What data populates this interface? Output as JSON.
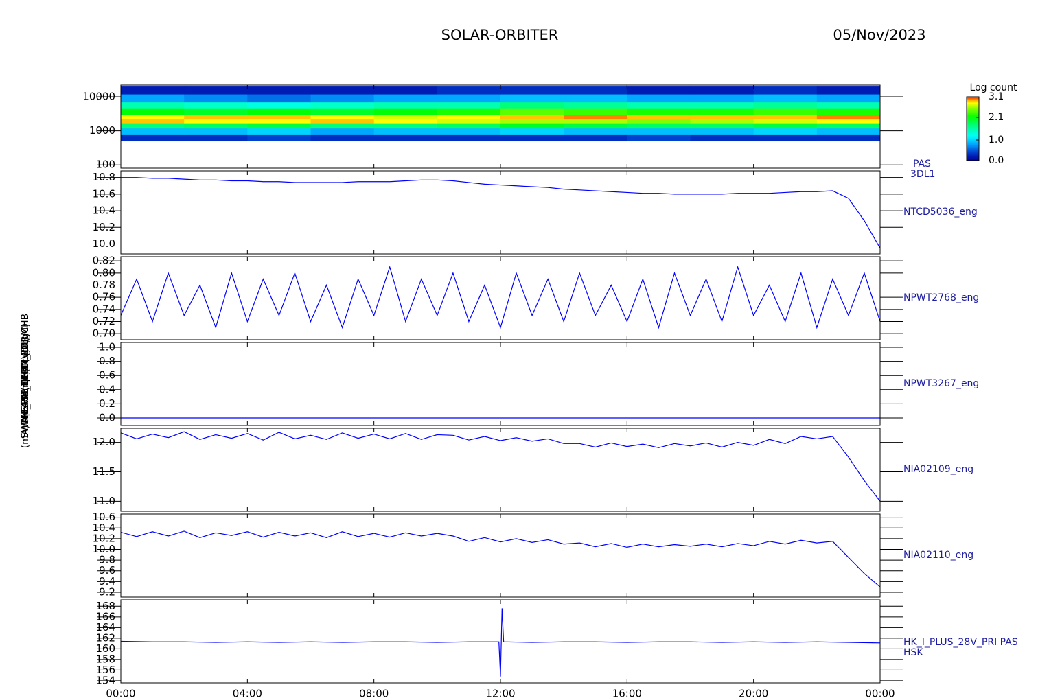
{
  "header": {
    "title": "SOLAR-ORBITER",
    "date": "05/Nov/2023"
  },
  "chart_data": [
    {
      "type": "heatmap",
      "ylabel": "(eV)",
      "label": "PAS",
      "label_line2": "3DL1",
      "xlim": [
        0,
        24
      ],
      "log_y": true,
      "ylim": [
        80,
        22000
      ],
      "yticks": [
        100,
        1000,
        10000
      ],
      "x_edges": [
        0,
        2,
        4,
        6,
        8,
        10,
        12,
        14,
        16,
        18,
        20,
        22,
        24
      ],
      "y_edges": [
        500,
        800,
        1200,
        1700,
        2200,
        3000,
        4500,
        7000,
        12000,
        20000
      ],
      "z": [
        [
          0.3,
          0.3,
          0.4,
          0.3,
          0.3,
          0.3,
          0.3,
          0.3,
          0.4,
          0.3,
          0.3,
          0.3
        ],
        [
          0.9,
          0.9,
          1.0,
          0.8,
          0.9,
          0.9,
          1.0,
          0.9,
          0.9,
          0.9,
          1.0,
          0.9
        ],
        [
          1.7,
          1.8,
          1.9,
          1.7,
          1.7,
          1.8,
          2.0,
          1.9,
          1.8,
          1.8,
          1.9,
          1.8
        ],
        [
          2.9,
          2.8,
          2.8,
          2.9,
          2.8,
          2.7,
          2.6,
          2.6,
          2.5,
          2.6,
          2.7,
          2.8
        ],
        [
          2.8,
          2.9,
          2.9,
          2.8,
          2.7,
          2.8,
          2.9,
          3.0,
          2.9,
          2.9,
          2.9,
          3.0
        ],
        [
          2.1,
          2.0,
          2.1,
          2.0,
          2.1,
          2.2,
          2.4,
          2.3,
          2.2,
          2.2,
          2.3,
          2.2
        ],
        [
          1.5,
          1.4,
          1.3,
          1.4,
          1.5,
          1.5,
          1.7,
          1.6,
          1.5,
          1.5,
          1.6,
          1.5
        ],
        [
          0.8,
          0.7,
          0.6,
          0.7,
          0.8,
          0.8,
          0.9,
          0.9,
          0.8,
          0.8,
          0.9,
          0.8
        ],
        [
          0.2,
          0.2,
          0.2,
          0.2,
          0.2,
          0.3,
          0.3,
          0.3,
          0.2,
          0.2,
          0.3,
          0.2
        ]
      ],
      "colorbar": {
        "title": "Log count",
        "zlim": [
          0,
          3.1
        ],
        "ticks": [
          {
            "value": 0,
            "label": "0.0"
          },
          {
            "value": 1,
            "label": "1.0"
          },
          2.1,
          3.1
        ]
      }
    },
    {
      "type": "line",
      "ylabel": "Apx Temp (DegC)",
      "xlim": [
        0,
        24
      ],
      "ylim": [
        9.88,
        10.88
      ],
      "yticks": [
        {
          "value": 10,
          "label": "10.0"
        },
        10.2,
        10.4,
        10.6,
        10.8
      ],
      "x": [
        0,
        0.5,
        1,
        1.5,
        2,
        2.5,
        3,
        3.5,
        4,
        4.5,
        5,
        5.5,
        6,
        6.5,
        7,
        7.5,
        8,
        8.5,
        9,
        9.5,
        10,
        10.5,
        11,
        11.5,
        12,
        12.5,
        13,
        13.5,
        14,
        14.5,
        15,
        15.5,
        16,
        16.5,
        17,
        17.5,
        18,
        18.5,
        19,
        19.5,
        20,
        20.5,
        21,
        21.5,
        22,
        22.5,
        23,
        23.5,
        24
      ],
      "series": [
        {
          "name": "NTCD5036_eng",
          "color": "#0000ff",
          "values": [
            10.8,
            10.8,
            10.79,
            10.79,
            10.78,
            10.77,
            10.77,
            10.76,
            10.76,
            10.75,
            10.75,
            10.74,
            10.74,
            10.74,
            10.74,
            10.75,
            10.75,
            10.75,
            10.76,
            10.77,
            10.77,
            10.76,
            10.74,
            10.72,
            10.71,
            10.7,
            10.69,
            10.68,
            10.66,
            10.65,
            10.64,
            10.63,
            10.62,
            10.61,
            10.61,
            10.6,
            10.6,
            10.6,
            10.6,
            10.61,
            10.61,
            10.61,
            10.62,
            10.63,
            10.63,
            10.64,
            10.55,
            10.28,
            9.95
          ]
        }
      ]
    },
    {
      "type": "line",
      "ylabel": "SWA-EAS1 TEMP (DegC)",
      "xlim": [
        0,
        24
      ],
      "ylim": [
        0.69,
        0.827
      ],
      "yticks": [
        {
          "value": 0.7,
          "label": "0.70"
        },
        0.72,
        0.74,
        0.76,
        0.78,
        {
          "value": 0.8,
          "label": "0.80"
        },
        0.82
      ],
      "x": [
        0,
        0.5,
        1,
        1.5,
        2,
        2.5,
        3,
        3.5,
        4,
        4.5,
        5,
        5.5,
        6,
        6.5,
        7,
        7.5,
        8,
        8.5,
        9,
        9.5,
        10,
        10.5,
        11,
        11.5,
        12,
        12.5,
        13,
        13.5,
        14,
        14.5,
        15,
        15.5,
        16,
        16.5,
        17,
        17.5,
        18,
        18.5,
        19,
        19.5,
        20,
        20.5,
        21,
        21.5,
        22,
        22.5,
        23,
        23.5,
        24
      ],
      "series": [
        {
          "name": "NPWT2768_eng",
          "color": "#0000ff",
          "values": [
            0.73,
            0.79,
            0.72,
            0.8,
            0.73,
            0.78,
            0.71,
            0.8,
            0.72,
            0.79,
            0.73,
            0.8,
            0.72,
            0.78,
            0.71,
            0.79,
            0.73,
            0.81,
            0.72,
            0.79,
            0.73,
            0.8,
            0.72,
            0.78,
            0.71,
            0.8,
            0.73,
            0.79,
            0.72,
            0.8,
            0.73,
            0.78,
            0.72,
            0.79,
            0.71,
            0.8,
            0.73,
            0.79,
            0.72,
            0.81,
            0.73,
            0.78,
            0.72,
            0.8,
            0.71,
            0.79,
            0.73,
            0.8,
            0.72
          ]
        }
      ]
    },
    {
      "type": "line",
      "ylabel": "SWA-EAS2 TEMP (DegC)",
      "xlim": [
        0,
        24
      ],
      "ylim": [
        -0.107,
        1.068
      ],
      "yticks": [
        {
          "value": 0,
          "label": "0.0"
        },
        0.2,
        0.4,
        0.6,
        0.8,
        {
          "value": 1,
          "label": "1.0"
        }
      ],
      "x": [
        0,
        24
      ],
      "series": [
        {
          "name": "NPWT3267_eng",
          "color": "#0000ff",
          "values": [
            0,
            0
          ]
        }
      ]
    },
    {
      "type": "line",
      "ylabel": "THERM_CH4 (Volt)",
      "xlim": [
        0,
        24
      ],
      "ylim": [
        10.83,
        12.24
      ],
      "yticks": [
        {
          "value": 11,
          "label": "11.0"
        },
        11.5,
        {
          "value": 12,
          "label": "12.0"
        }
      ],
      "x": [
        0,
        0.5,
        1,
        1.5,
        2,
        2.5,
        3,
        3.5,
        4,
        4.5,
        5,
        5.5,
        6,
        6.5,
        7,
        7.5,
        8,
        8.5,
        9,
        9.5,
        10,
        10.5,
        11,
        11.5,
        12,
        12.5,
        13,
        13.5,
        14,
        14.5,
        15,
        15.5,
        16,
        16.5,
        17,
        17.5,
        18,
        18.5,
        19,
        19.5,
        20,
        20.5,
        21,
        21.5,
        22,
        22.5,
        23,
        23.5,
        24
      ],
      "series": [
        {
          "name": "NIA02109_eng",
          "color": "#0000ff",
          "values": [
            12.16,
            12.06,
            12.14,
            12.08,
            12.18,
            12.05,
            12.13,
            12.07,
            12.15,
            12.04,
            12.17,
            12.06,
            12.12,
            12.05,
            12.16,
            12.07,
            12.14,
            12.06,
            12.15,
            12.05,
            12.13,
            12.12,
            12.04,
            12.1,
            12.03,
            12.08,
            12.02,
            12.06,
            11.98,
            11.98,
            11.92,
            11.99,
            11.93,
            11.97,
            11.91,
            11.98,
            11.94,
            11.99,
            11.92,
            12.0,
            11.95,
            12.05,
            11.98,
            12.1,
            12.06,
            12.1,
            11.75,
            11.35,
            11.0
          ]
        }
      ]
    },
    {
      "type": "line",
      "ylabel": "THERM_CH5 (Volt)",
      "xlim": [
        0,
        24
      ],
      "ylim": [
        9.11,
        10.66
      ],
      "yticks": [
        9.2,
        9.4,
        9.6,
        9.8,
        {
          "value": 10,
          "label": "10.0"
        },
        10.2,
        10.4,
        10.6
      ],
      "x": [
        0,
        0.5,
        1,
        1.5,
        2,
        2.5,
        3,
        3.5,
        4,
        4.5,
        5,
        5.5,
        6,
        6.5,
        7,
        7.5,
        8,
        8.5,
        9,
        9.5,
        10,
        10.5,
        11,
        11.5,
        12,
        12.5,
        13,
        13.5,
        14,
        14.5,
        15,
        15.5,
        16,
        16.5,
        17,
        17.5,
        18,
        18.5,
        19,
        19.5,
        20,
        20.5,
        21,
        21.5,
        22,
        22.5,
        23,
        23.5,
        24
      ],
      "series": [
        {
          "name": "NIA02110_eng",
          "color": "#0000ff",
          "values": [
            10.32,
            10.24,
            10.33,
            10.25,
            10.34,
            10.22,
            10.31,
            10.26,
            10.33,
            10.23,
            10.32,
            10.25,
            10.31,
            10.22,
            10.33,
            10.24,
            10.3,
            10.23,
            10.31,
            10.25,
            10.3,
            10.25,
            10.15,
            10.22,
            10.14,
            10.2,
            10.13,
            10.18,
            10.1,
            10.12,
            10.05,
            10.11,
            10.04,
            10.1,
            10.05,
            10.09,
            10.06,
            10.1,
            10.05,
            10.11,
            10.07,
            10.15,
            10.1,
            10.17,
            10.12,
            10.15,
            9.85,
            9.55,
            9.3
          ]
        }
      ]
    },
    {
      "type": "line",
      "ylabel": "(mA)DM_HK_IMON_PDRMHB",
      "xlim": [
        0,
        24
      ],
      "ylim": [
        153.6,
        169.2
      ],
      "yticks": [
        154,
        156,
        158,
        160,
        162,
        164,
        166,
        168
      ],
      "xticks": [
        {
          "value": 0,
          "label": "00:00"
        },
        {
          "value": 4,
          "label": "04:00"
        },
        {
          "value": 8,
          "label": "08:00"
        },
        {
          "value": 12,
          "label": "12:00"
        },
        {
          "value": 16,
          "label": "16:00"
        },
        {
          "value": 20,
          "label": "20:00"
        },
        {
          "value": 24,
          "label": "00:00"
        }
      ],
      "x": [
        0,
        1,
        2,
        3,
        4,
        5,
        6,
        7,
        8,
        9,
        10,
        11,
        11.95,
        12,
        12.05,
        12.1,
        13,
        14,
        15,
        16,
        17,
        18,
        19,
        20,
        21,
        22,
        23,
        24
      ],
      "series": [
        {
          "name": "HK_I_PLUS_28V_PRI PAS",
          "name_line2": "HSK",
          "color": "#0000ff",
          "values": [
            161.4,
            161.3,
            161.3,
            161.2,
            161.3,
            161.2,
            161.3,
            161.2,
            161.3,
            161.3,
            161.2,
            161.3,
            161.3,
            154.8,
            167.6,
            161.3,
            161.2,
            161.3,
            161.3,
            161.2,
            161.3,
            161.3,
            161.2,
            161.3,
            161.2,
            161.3,
            161.2,
            161.1
          ]
        }
      ]
    }
  ]
}
